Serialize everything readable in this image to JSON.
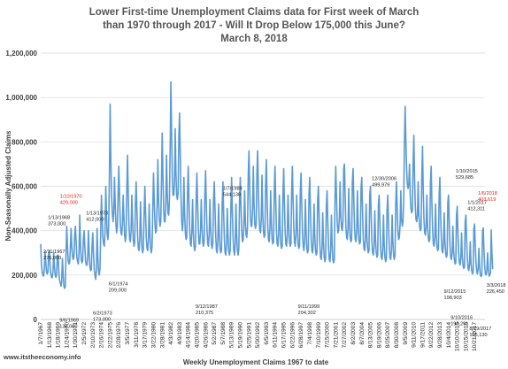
{
  "colors": {
    "line": "#5b9bd5",
    "highlight": "#e0201b",
    "grid": "#d9d9d9",
    "text": "#404040"
  },
  "chart_data": {
    "type": "line",
    "title": [
      "Lower First-time Unemployment Claims data for First week of March",
      "than 1970 through 2017 - Will It Drop Below 175,000 this June?",
      "March 8, 2018"
    ],
    "xlabel": "Weekly Unemployment Claims 1967 to date",
    "ylabel": "Non-Seasonally Adjusted Claims",
    "ylim": [
      0,
      1200000
    ],
    "yticks": [
      "0",
      "200,000",
      "400,000",
      "600,000",
      "800,000",
      "1,000,000",
      "1,200,000"
    ],
    "grid": true,
    "legend": "none",
    "website": "www.itstheeconomy.info",
    "x_tick_labels": [
      "1/7/1967",
      "1/13/1968",
      "1/18/1969",
      "1/24/1970",
      "1/30/1971",
      "2/5/1972",
      "2/10/1973",
      "2/16/1974",
      "2/22/1975",
      "2/28/1976",
      "3/5/1977",
      "3/11/1978",
      "3/17/1979",
      "3/22/1980",
      "3/28/1981",
      "4/3/1982",
      "4/9/1983",
      "4/14/1984",
      "4/20/1985",
      "4/26/1986",
      "5/2/1987",
      "5/7/1988",
      "5/13/1989",
      "5/19/1990",
      "5/25/1991",
      "5/30/1992",
      "6/5/1993",
      "6/11/1994",
      "6/17/1995",
      "6/22/1996",
      "6/28/1997",
      "7/4/1998",
      "7/10/1999",
      "7/15/2000",
      "7/21/2001",
      "7/27/2002",
      "8/2/2003",
      "8/7/2004",
      "8/13/2005",
      "8/19/2006",
      "8/25/2007",
      "8/30/2008",
      "9/5/2009",
      "9/11/2010",
      "9/17/2011",
      "9/22/2012",
      "9/28/2013",
      "10/4/2014",
      "10/10/2015",
      "10/15/2016",
      "10/21/2017"
    ],
    "series": [
      {
        "x_start": 1967.0,
        "x_end": 2018.2,
        "points_per_year": 12,
        "y": [
          340000,
          250000,
          215000,
          200000,
          195000,
          230000,
          305000,
          260000,
          215000,
          205000,
          215000,
          300000,
          310000,
          245000,
          205000,
          190000,
          188000,
          220000,
          300000,
          240000,
          200000,
          190000,
          200000,
          290000,
          290000,
          220000,
          178000,
          165000,
          150000,
          168000,
          275000,
          210000,
          150000,
          140000,
          148000,
          300000,
          420000,
          330000,
          265000,
          250000,
          255000,
          320000,
          410000,
          330000,
          285000,
          270000,
          285000,
          380000,
          420000,
          350000,
          280000,
          260000,
          250000,
          300000,
          470000,
          340000,
          270000,
          255000,
          265000,
          360000,
          400000,
          330000,
          265000,
          245000,
          245000,
          285000,
          400000,
          300000,
          240000,
          220000,
          225000,
          330000,
          390000,
          300000,
          225000,
          200000,
          180000,
          220000,
          410000,
          280000,
          220000,
          200000,
          230000,
          390000,
          560000,
          450000,
          370000,
          340000,
          330000,
          400000,
          600000,
          470000,
          380000,
          360000,
          420000,
          650000,
          970000,
          720000,
          560000,
          480000,
          440000,
          480000,
          640000,
          520000,
          430000,
          390000,
          420000,
          560000,
          690000,
          560000,
          440000,
          390000,
          380000,
          430000,
          560000,
          470000,
          380000,
          350000,
          380000,
          570000,
          740000,
          580000,
          430000,
          360000,
          350000,
          400000,
          560000,
          450000,
          360000,
          330000,
          350000,
          520000,
          620000,
          500000,
          380000,
          320000,
          310000,
          360000,
          530000,
          400000,
          320000,
          300000,
          320000,
          480000,
          600000,
          480000,
          370000,
          320000,
          310000,
          360000,
          520000,
          390000,
          320000,
          300000,
          330000,
          500000,
          660000,
          540000,
          430000,
          390000,
          400000,
          520000,
          720000,
          540000,
          450000,
          420000,
          440000,
          620000,
          840000,
          650000,
          500000,
          440000,
          440000,
          520000,
          740000,
          570000,
          480000,
          470000,
          540000,
          770000,
          1070000,
          850000,
          640000,
          560000,
          560000,
          620000,
          860000,
          660000,
          560000,
          540000,
          570000,
          820000,
          930000,
          750000,
          550000,
          440000,
          400000,
          450000,
          640000,
          480000,
          390000,
          360000,
          370000,
          560000,
          690000,
          540000,
          410000,
          340000,
          330000,
          390000,
          540000,
          400000,
          330000,
          310000,
          330000,
          540000,
          660000,
          520000,
          400000,
          340000,
          340000,
          400000,
          540000,
          420000,
          350000,
          330000,
          350000,
          560000,
          670000,
          520000,
          400000,
          340000,
          330000,
          390000,
          540000,
          410000,
          340000,
          320000,
          340000,
          540000,
          620000,
          500000,
          380000,
          310000,
          300000,
          360000,
          520000,
          390000,
          320000,
          300000,
          310000,
          520000,
          620000,
          480000,
          360000,
          300000,
          290000,
          340000,
          500000,
          380000,
          310000,
          290000,
          310000,
          500000,
          640000,
          490000,
          370000,
          310000,
          290000,
          340000,
          520000,
          380000,
          310000,
          290000,
          320000,
          544138,
          640000,
          510000,
          400000,
          350000,
          360000,
          430000,
          580000,
          440000,
          380000,
          370000,
          420000,
          650000,
          760000,
          600000,
          460000,
          420000,
          420000,
          500000,
          690000,
          520000,
          430000,
          410000,
          430000,
          660000,
          760000,
          590000,
          460000,
          400000,
          390000,
          450000,
          650000,
          480000,
          400000,
          370000,
          380000,
          600000,
          720000,
          560000,
          420000,
          360000,
          350000,
          410000,
          580000,
          440000,
          360000,
          340000,
          350000,
          580000,
          690000,
          540000,
          400000,
          340000,
          330000,
          380000,
          560000,
          420000,
          340000,
          320000,
          330000,
          560000,
          680000,
          530000,
          400000,
          340000,
          330000,
          380000,
          560000,
          430000,
          350000,
          330000,
          340000,
          570000,
          690000,
          540000,
          410000,
          350000,
          330000,
          380000,
          560000,
          420000,
          340000,
          320000,
          330000,
          580000,
          660000,
          520000,
          390000,
          330000,
          310000,
          360000,
          540000,
          400000,
          320000,
          300000,
          310000,
          560000,
          640000,
          500000,
          370000,
          310000,
          300000,
          350000,
          520000,
          380000,
          310000,
          290000,
          300000,
          540000,
          600000,
          470000,
          340000,
          280000,
          270000,
          320000,
          480000,
          350000,
          280000,
          260000,
          275000,
          510000,
          580000,
          450000,
          330000,
          270000,
          260000,
          310000,
          470000,
          340000,
          270000,
          255000,
          270000,
          540000,
          690000,
          560000,
          440000,
          390000,
          400000,
          460000,
          620000,
          470000,
          410000,
          400000,
          440000,
          680000,
          700000,
          560000,
          420000,
          370000,
          360000,
          410000,
          590000,
          440000,
          370000,
          350000,
          360000,
          620000,
          680000,
          540000,
          410000,
          360000,
          350000,
          400000,
          580000,
          430000,
          360000,
          340000,
          350000,
          590000,
          640000,
          500000,
          370000,
          320000,
          310000,
          360000,
          520000,
          380000,
          320000,
          300000,
          310000,
          560000,
          600000,
          470000,
          350000,
          300000,
          290000,
          330000,
          490000,
          360000,
          300000,
          280000,
          290000,
          520000,
          560000,
          440000,
          330000,
          280000,
          270000,
          310000,
          470000,
          340000,
          280000,
          260000,
          270000,
          499979,
          560000,
          440000,
          330000,
          280000,
          270000,
          310000,
          470000,
          350000,
          290000,
          270000,
          290000,
          530000,
          620000,
          500000,
          400000,
          360000,
          370000,
          430000,
          580000,
          450000,
          420000,
          440000,
          530000,
          800000,
          960000,
          800000,
          680000,
          610000,
          590000,
          610000,
          700000,
          560000,
          500000,
          480000,
          490000,
          700000,
          830000,
          640000,
          510000,
          450000,
          440000,
          470000,
          620000,
          470000,
          420000,
          400000,
          410000,
          640000,
          780000,
          580000,
          450000,
          390000,
          380000,
          420000,
          560000,
          420000,
          370000,
          350000,
          360000,
          620000,
          690000,
          520000,
          400000,
          340000,
          330000,
          370000,
          520000,
          380000,
          330000,
          310000,
          320000,
          560000,
          640000,
          480000,
          370000,
          310000,
          300000,
          340000,
          480000,
          350000,
          300000,
          280000,
          290000,
          530000,
          560000,
          430000,
          330000,
          280000,
          270000,
          300000,
          420000,
          310000,
          270000,
          250000,
          255000,
          470000,
          510000,
          390000,
          300000,
          255000,
          245000,
          275000,
          390000,
          285000,
          245000,
          230000,
          235000,
          440000,
          470000,
          360000,
          275000,
          230000,
          220000,
          250000,
          350000,
          255000,
          220000,
          205000,
          215000,
          410000,
          430000,
          330000,
          255000,
          215000,
          205000,
          230000,
          320000,
          235000,
          198903,
          193291,
          200000,
          400000,
          412311,
          310000,
          240000,
          205000,
          200000,
          220000,
          300000,
          230000,
          195130,
          200000,
          210000,
          403619,
          300000,
          226450
        ]
      }
    ],
    "annotations": [
      {
        "text": [
          "2/11/1967",
          "276,000"
        ],
        "x": 1967.1,
        "y": 276000,
        "color": "normal"
      },
      {
        "text": [
          "1/13/1968",
          "373,000"
        ],
        "x": 1968.04,
        "y": 373000,
        "color": "normal"
      },
      {
        "text": [
          "9/6/1969",
          "133,000"
        ],
        "x": 1969.68,
        "y": 133000,
        "color": "normal"
      },
      {
        "text": [
          "1/10/1970",
          "429,000"
        ],
        "x": 1970.03,
        "y": 429000,
        "color": "red"
      },
      {
        "text": [
          "1/13/1973",
          "412,000"
        ],
        "x": 1973.04,
        "y": 412000,
        "color": "normal"
      },
      {
        "text": [
          "6/2/1973",
          "173,000"
        ],
        "x": 1973.42,
        "y": 173000,
        "color": "normal"
      },
      {
        "text": [
          "6/1/1974",
          "209,000"
        ],
        "x": 1974.42,
        "y": 209000,
        "color": "normal"
      },
      {
        "text": [
          "1/7/1989",
          "544,138"
        ],
        "x": 1989.02,
        "y": 544138,
        "color": "normal"
      },
      {
        "text": [
          "9/12/1987",
          "210,375"
        ],
        "x": 1987.7,
        "y": 210375,
        "color": "normal"
      },
      {
        "text": [
          "9/11/1999",
          "204,302"
        ],
        "x": 1999.7,
        "y": 204302,
        "color": "normal"
      },
      {
        "text": [
          "12/30/2006",
          "499,979"
        ],
        "x": 2006.99,
        "y": 499979,
        "color": "normal"
      },
      {
        "text": [
          "1/10/2015",
          "529,685"
        ],
        "x": 2015.03,
        "y": 529685,
        "color": "normal"
      },
      {
        "text": [
          "9/12/2015",
          "198,903"
        ],
        "x": 2015.7,
        "y": 198903,
        "color": "normal"
      },
      {
        "text": [
          "9/10/2016",
          "193,291"
        ],
        "x": 2016.69,
        "y": 193291,
        "color": "normal"
      },
      {
        "text": [
          "1/1/2017",
          "412,311"
        ],
        "x": 2017.0,
        "y": 412311,
        "color": "normal"
      },
      {
        "text": [
          "1/6/2018",
          "403,619"
        ],
        "x": 2018.01,
        "y": 403619,
        "color": "red"
      },
      {
        "text": [
          "3/3/2018",
          "226,450"
        ],
        "x": 2018.17,
        "y": 226450,
        "color": "normal"
      },
      {
        "text": [
          "8/19/2017",
          "195,130"
        ],
        "x": 2017.63,
        "y": 195130,
        "color": "normal"
      }
    ]
  }
}
